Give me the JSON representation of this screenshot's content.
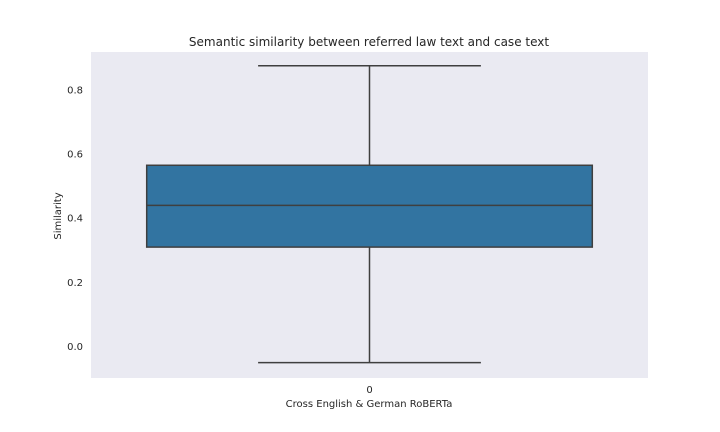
{
  "chart_data": {
    "type": "box",
    "title": "Semantic similarity between referred law text and case text",
    "xlabel": "Cross English & German RoBERTa",
    "ylabel": "Similarity",
    "categories": [
      "0"
    ],
    "yticks": [
      "0.0",
      "0.2",
      "0.4",
      "0.6",
      "0.8"
    ],
    "ylim": [
      -0.098,
      0.918
    ],
    "grid": false,
    "colors": {
      "plot_bg": "#eaeaf2",
      "box_fill": "#3274a1",
      "line": "#3f3f3f"
    },
    "boxes": [
      {
        "category": "0",
        "whisker_low": -0.05,
        "q1": 0.31,
        "median": 0.44,
        "q3": 0.565,
        "whisker_high": 0.875
      }
    ]
  }
}
